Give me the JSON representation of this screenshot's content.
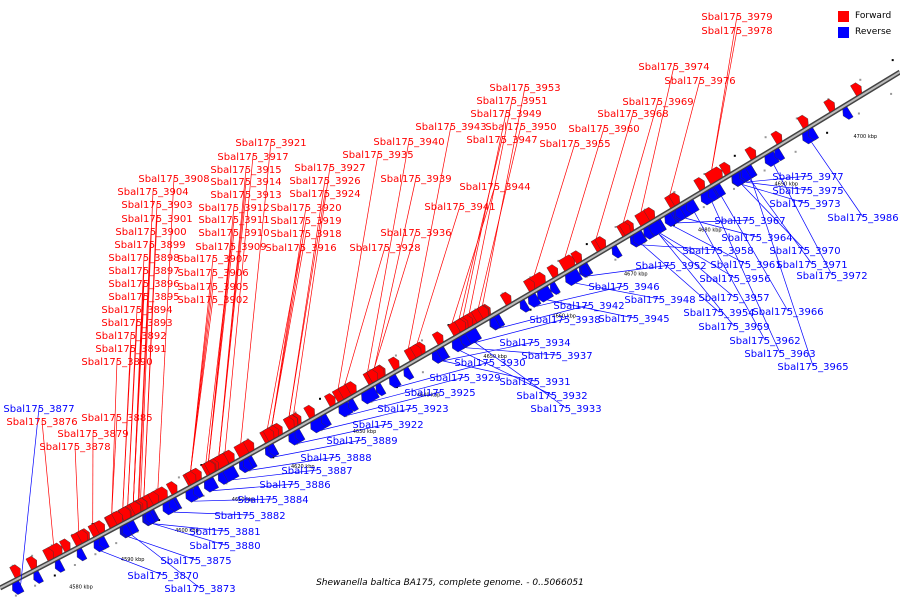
{
  "title": "Shewanella baltica BA175, complete genome. - 0..5066051",
  "legend": [
    {
      "label": "Forward",
      "color": "#ff0000"
    },
    {
      "label": "Reverse",
      "color": "#0000ff"
    }
  ],
  "colors": {
    "forward": "#ff0000",
    "reverse": "#0000ff",
    "backbone": "#777777"
  },
  "ruler_ticks": [
    "4580 kbp",
    "4590 kbp",
    "4600 kbp",
    "4610 kbp",
    "4620 kbp",
    "4630 kbp",
    "4640 kbp",
    "4650 kbp",
    "4660 kbp",
    "4670 kbp",
    "4680 kbp",
    "4690 kbp",
    "4700 kbp"
  ],
  "forward_labels": [
    "Sbal175_3979",
    "Sbal175_3978",
    "Sbal175_3974",
    "Sbal175_3976",
    "Sbal175_3953",
    "Sbal175_3951",
    "Sbal175_3969",
    "Sbal175_3949",
    "Sbal175_3968",
    "Sbal175_3943",
    "Sbal175_3950",
    "Sbal175_3960",
    "Sbal175_3947",
    "Sbal175_3940",
    "Sbal175_3955",
    "Sbal175_3921",
    "Sbal175_3935",
    "Sbal175_3917",
    "Sbal175_3927",
    "Sbal175_3915",
    "Sbal175_3908",
    "Sbal175_3926",
    "Sbal175_3914",
    "Sbal175_3939",
    "Sbal175_3904",
    "Sbal175_3913",
    "Sbal175_3924",
    "Sbal175_3944",
    "Sbal175_3903",
    "Sbal175_3912",
    "Sbal175_3920",
    "Sbal175_3941",
    "Sbal175_3901",
    "Sbal175_3911",
    "Sbal175_3919",
    "Sbal175_3900",
    "Sbal175_3910",
    "Sbal175_3918",
    "Sbal175_3936",
    "Sbal175_3899",
    "Sbal175_3909",
    "Sbal175_3916",
    "Sbal175_3928",
    "Sbal175_3898",
    "Sbal175_3907",
    "Sbal175_3897",
    "Sbal175_3906",
    "Sbal175_3896",
    "Sbal175_3905",
    "Sbal175_3895",
    "Sbal175_3902",
    "Sbal175_3894",
    "Sbal175_3893",
    "Sbal175_3892",
    "Sbal175_3891",
    "Sbal175_3890",
    "Sbal175_3885",
    "Sbal175_3876",
    "Sbal175_3879",
    "Sbal175_3878"
  ],
  "reverse_labels": [
    "Sbal175_3977",
    "Sbal175_3975",
    "Sbal175_3973",
    "Sbal175_3986",
    "Sbal175_3967",
    "Sbal175_3964",
    "Sbal175_3958",
    "Sbal175_3970",
    "Sbal175_3952",
    "Sbal175_3961",
    "Sbal175_3971",
    "Sbal175_3956",
    "Sbal175_3972",
    "Sbal175_3946",
    "Sbal175_3957",
    "Sbal175_3948",
    "Sbal175_3942",
    "Sbal175_3954",
    "Sbal175_3966",
    "Sbal175_3938",
    "Sbal175_3945",
    "Sbal175_3959",
    "Sbal175_3962",
    "Sbal175_3963",
    "Sbal175_3934",
    "Sbal175_3965",
    "Sbal175_3937",
    "Sbal175_3930",
    "Sbal175_3929",
    "Sbal175_3931",
    "Sbal175_3925",
    "Sbal175_3932",
    "Sbal175_3923",
    "Sbal175_3933",
    "Sbal175_3922",
    "Sbal175_3889",
    "Sbal175_3877",
    "Sbal175_3888",
    "Sbal175_3887",
    "Sbal175_3886",
    "Sbal175_3884",
    "Sbal175_3882",
    "Sbal175_3881",
    "Sbal175_3880",
    "Sbal175_3875",
    "Sbal175_3870",
    "Sbal175_3873"
  ]
}
